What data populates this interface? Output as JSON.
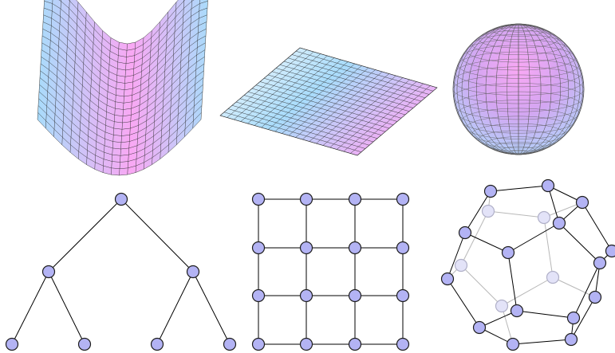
{
  "colors": {
    "gradient_cyan": "#a9dcfb",
    "gradient_magenta": "#f9a8f4",
    "gradient_white": "#ffffff",
    "mesh_line": "#2b2b2b",
    "node_fill": "#b3b3f4",
    "node_stroke": "#1e1e1e",
    "edge": "#000000",
    "hidden_edge": "#b8b8b8",
    "hidden_node_fill": "#e3e3f8",
    "hidden_node_stroke": "#b0b0c8"
  },
  "panels": [
    {
      "id": "saddle-surface",
      "kind": "3d-surface",
      "shape": "saddle"
    },
    {
      "id": "plane-surface",
      "kind": "3d-surface",
      "shape": "flat-plane"
    },
    {
      "id": "sphere-surface",
      "kind": "3d-surface",
      "shape": "sphere"
    },
    {
      "id": "binary-tree",
      "kind": "graph",
      "shape": "binary-tree",
      "depth": 2
    },
    {
      "id": "grid-graph",
      "kind": "graph",
      "shape": "grid",
      "rows": 4,
      "cols": 4
    },
    {
      "id": "dodecahedron-graph",
      "kind": "graph",
      "shape": "dodecahedron"
    }
  ]
}
